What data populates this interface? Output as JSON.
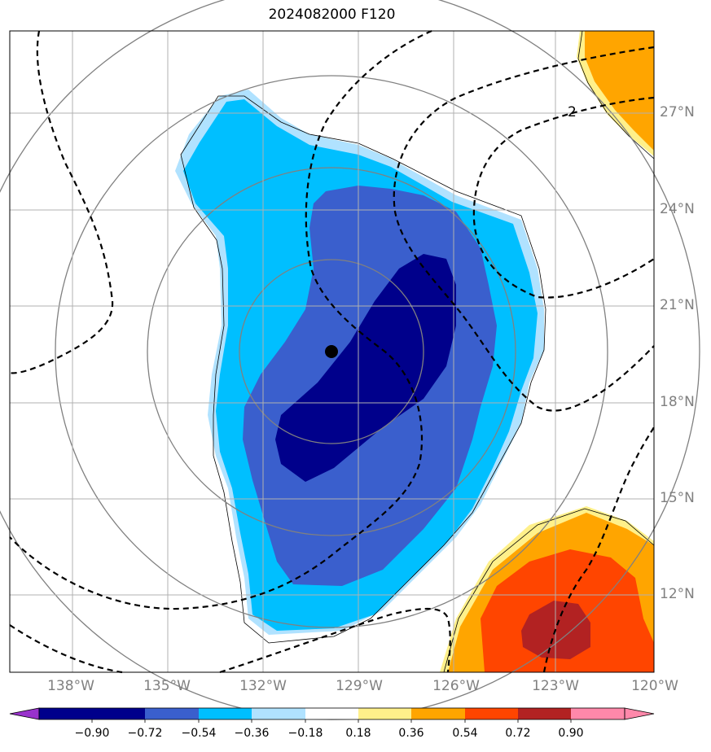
{
  "title": "2024082000 F120",
  "contour_label": "2",
  "lat_labels": [
    "27°N",
    "24°N",
    "21°N",
    "18°N",
    "15°N",
    "12°N"
  ],
  "lon_labels": [
    "138°W",
    "135°W",
    "132°W",
    "129°W",
    "126°W",
    "123°W",
    "120°W"
  ],
  "colorbar": {
    "ticks": [
      "−0.90",
      "−0.72",
      "−0.54",
      "−0.36",
      "−0.18",
      "0.18",
      "0.36",
      "0.54",
      "0.72",
      "0.90"
    ],
    "colors": [
      "#9932cc",
      "#00008b",
      "#3a5fcd",
      "#00bfff",
      "#b0e2ff",
      "#ffffff",
      "#fff08a",
      "#ffa500",
      "#ff4500",
      "#b22222",
      "#ff88aa"
    ]
  },
  "map": {
    "extent": {
      "lon": [
        -140,
        -120
      ],
      "lat": [
        9.8,
        29.8
      ]
    },
    "center_marker": {
      "lon": -130,
      "lat": 19.6
    },
    "colors": {
      "deep": "#00008b",
      "mid": "#3a5fcd",
      "shallow": "#00bfff",
      "light": "#b0e2ff",
      "yellow": "#fff08a",
      "orange": "#ffa500",
      "red": "#ff4500",
      "darkred": "#b22222"
    }
  }
}
